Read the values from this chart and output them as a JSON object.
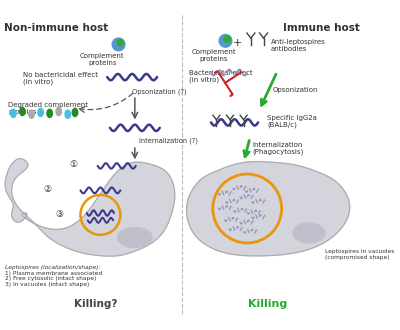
{
  "left_header": "Non-immune host",
  "right_header": "Immune host",
  "left_killing": "Killing?",
  "right_killing": "Killing",
  "bg_color": "#ffffff",
  "cell_color": "#d4d4dc",
  "cell_edge_color": "#aaaaaa",
  "nucleus_color": "#c0c0cc",
  "vacuole_color": "#e8960a",
  "lepto_color": "#3a3a8c",
  "lepto_dead_color": "#9090bb",
  "green_color": "#2aaa2a",
  "red_color": "#cc2222",
  "gray_color": "#555555",
  "text_color": "#333333",
  "killing_left_color": "#444444",
  "killing_right_color": "#2aaa2a",
  "blob_colors": [
    "#45c0e0",
    "#228B22",
    "#aaaaaa",
    "#45c0e0",
    "#228B22",
    "#aaaaaa",
    "#45c0e0",
    "#228B22"
  ]
}
